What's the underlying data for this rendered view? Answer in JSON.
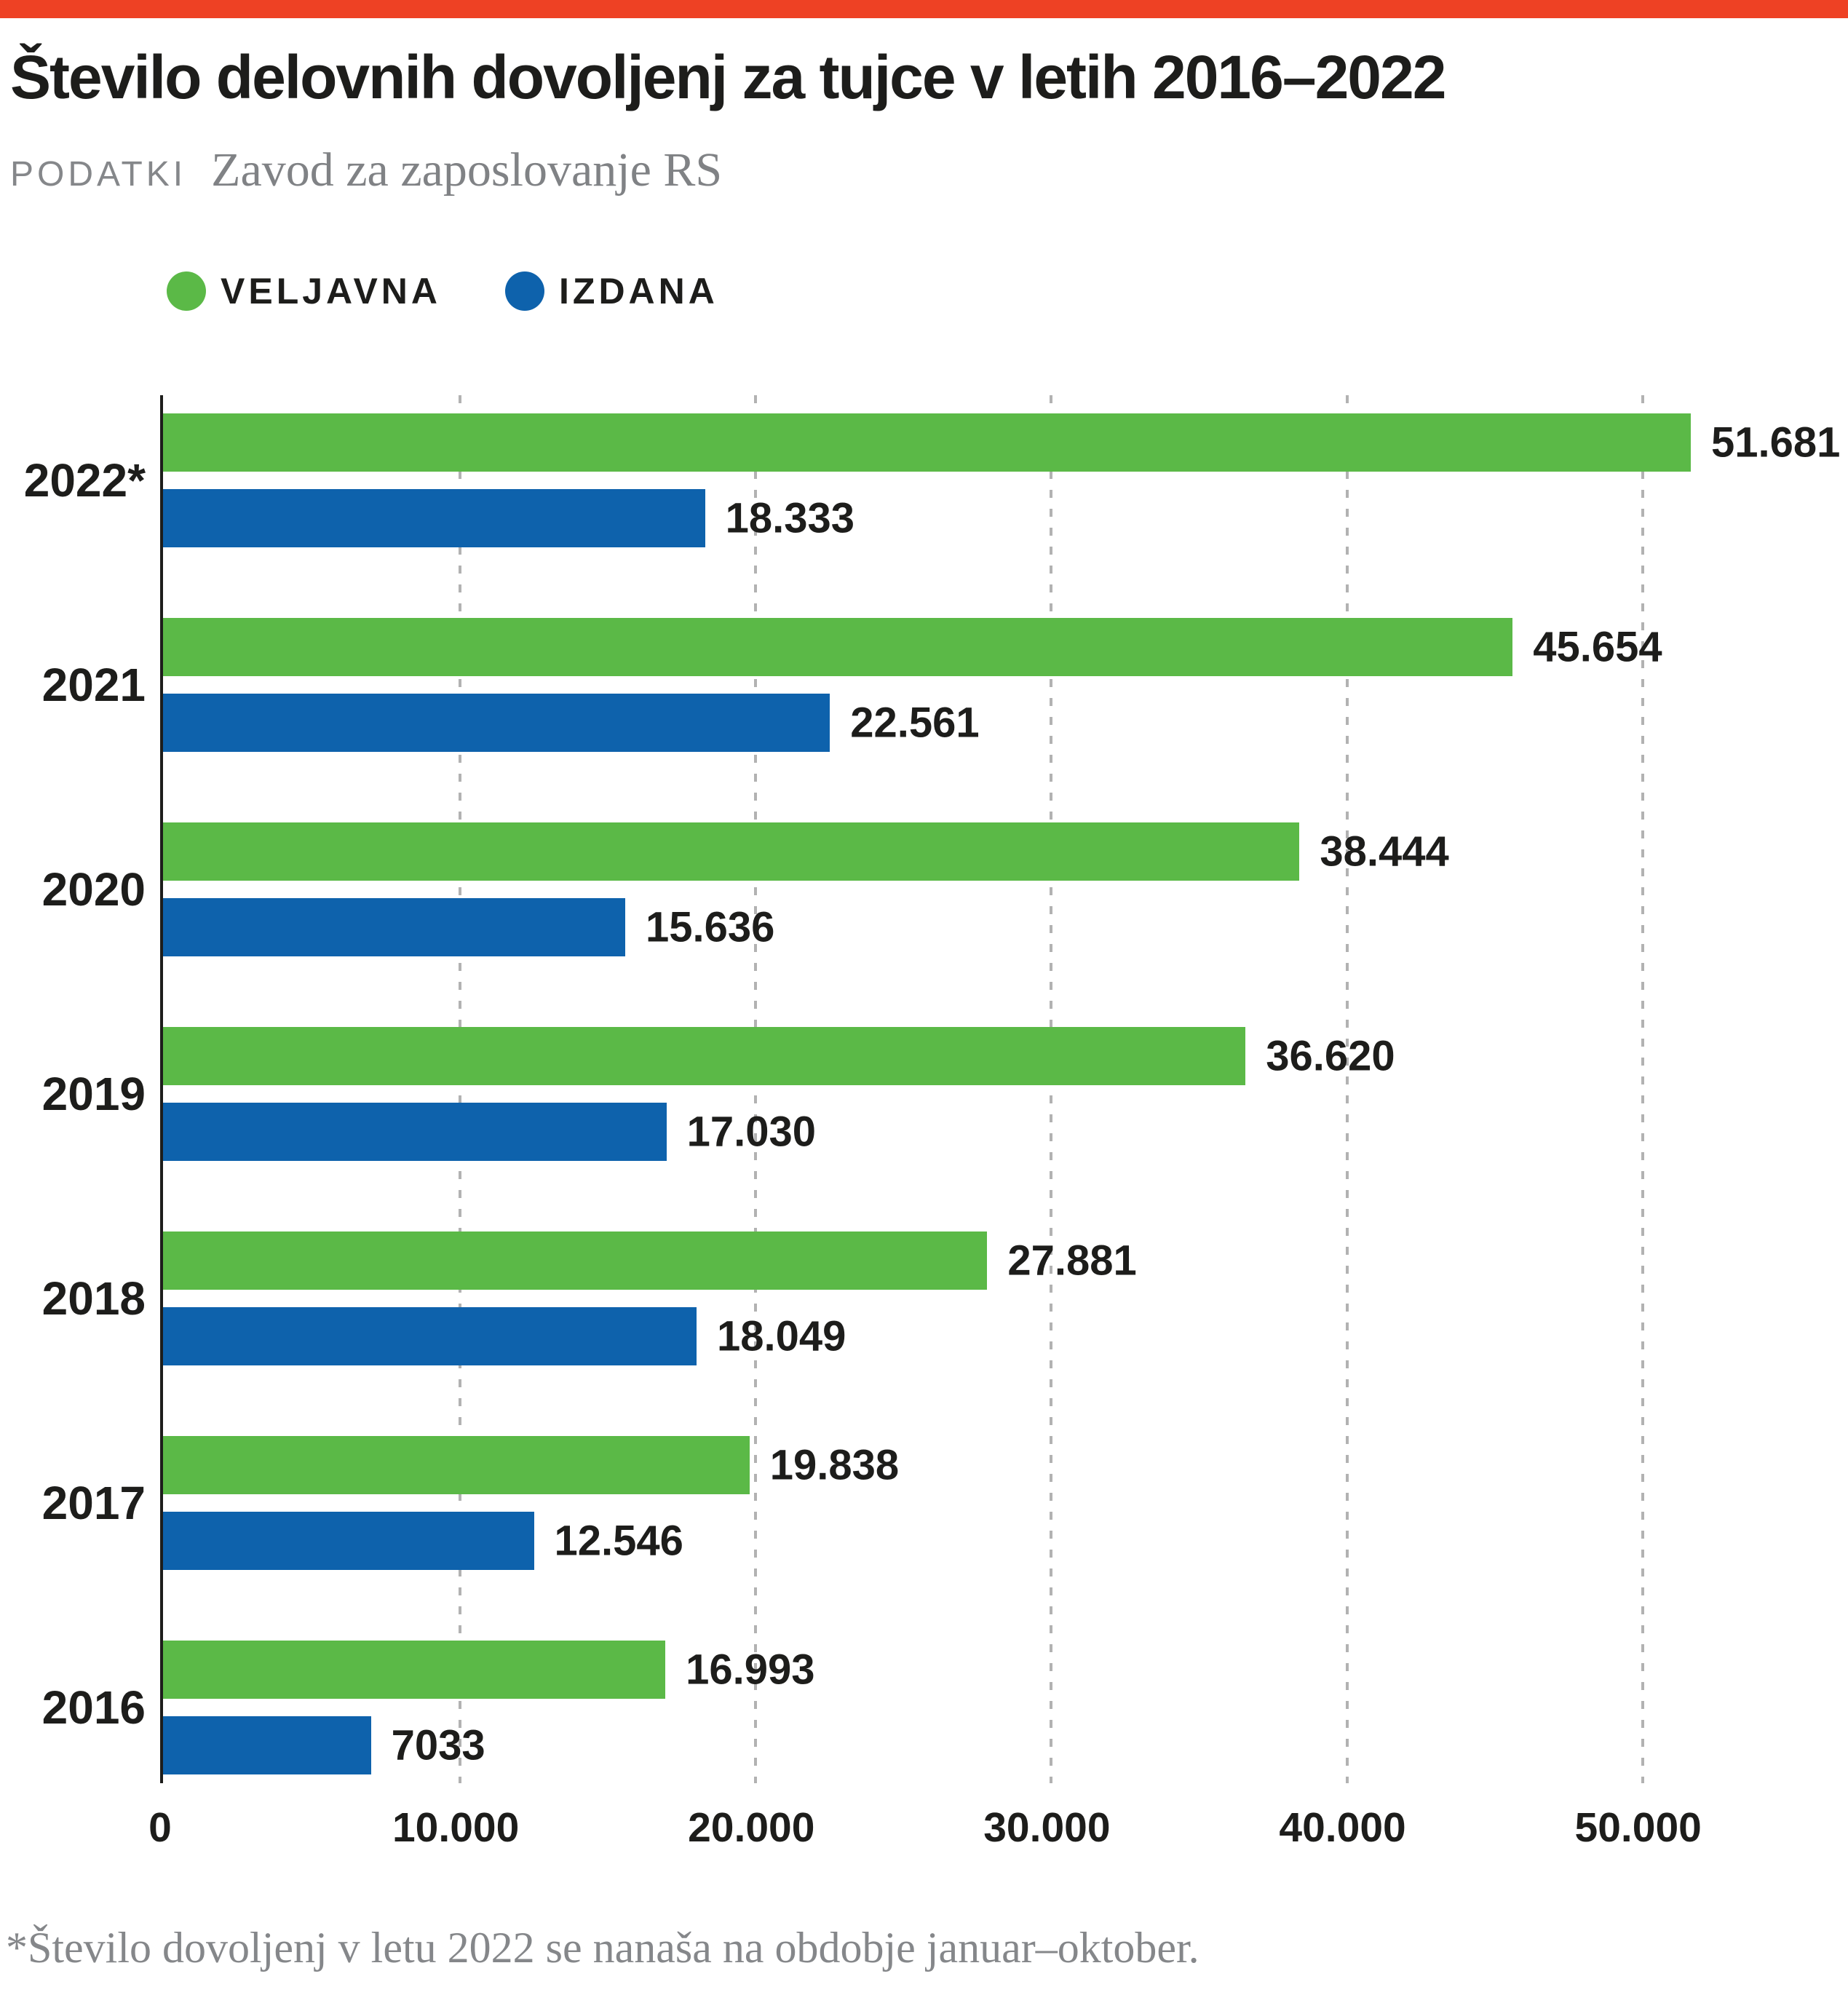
{
  "meta": {
    "accent_red": "#ee4124",
    "text_black": "#1d1d1b",
    "grid_gray": "#b2b2b2",
    "muted_gray": "#85878a"
  },
  "header": {
    "title": "Število delovnih dovoljenj za tujce v letih 2016–2022",
    "source_label": "PODATKI",
    "source_name": "Zavod za zaposlovanje RS"
  },
  "legend": {
    "items": [
      {
        "label": "VELJAVNA",
        "color": "#5bb947"
      },
      {
        "label": "IZDANA",
        "color": "#0e62ac"
      }
    ]
  },
  "chart_data": {
    "type": "bar",
    "orientation": "horizontal",
    "title": "Število delovnih dovoljenj za tujce v letih 2016–2022",
    "source": "Zavod za zaposlovanje RS",
    "categories": [
      "2022*",
      "2021",
      "2020",
      "2019",
      "2018",
      "2017",
      "2016"
    ],
    "series": [
      {
        "name": "VELJAVNA",
        "color": "#5bb947",
        "values": [
          51681,
          45654,
          38444,
          36620,
          27881,
          19838,
          16993
        ],
        "value_labels": [
          "51.681",
          "45.654",
          "38.444",
          "36.620",
          "27.881",
          "19.838",
          "16.993"
        ]
      },
      {
        "name": "IZDANA",
        "color": "#0e62ac",
        "values": [
          18333,
          22561,
          15636,
          17030,
          18049,
          12546,
          7033
        ],
        "value_labels": [
          "18.333",
          "22.561",
          "15.636",
          "17.030",
          "18.049",
          "12.546",
          "7033"
        ]
      }
    ],
    "x_axis": {
      "min": 0,
      "max": 57000,
      "ticks": [
        0,
        10000,
        20000,
        30000,
        40000,
        50000
      ],
      "tick_labels": [
        "0",
        "10.000",
        "20.000",
        "30.000",
        "40.000",
        "50.000"
      ]
    },
    "grid": "vertical-dashed",
    "legend_position": "top-left"
  },
  "footnote": "*Število dovoljenj v letu 2022 se nanaša na obdobje januar–oktober."
}
